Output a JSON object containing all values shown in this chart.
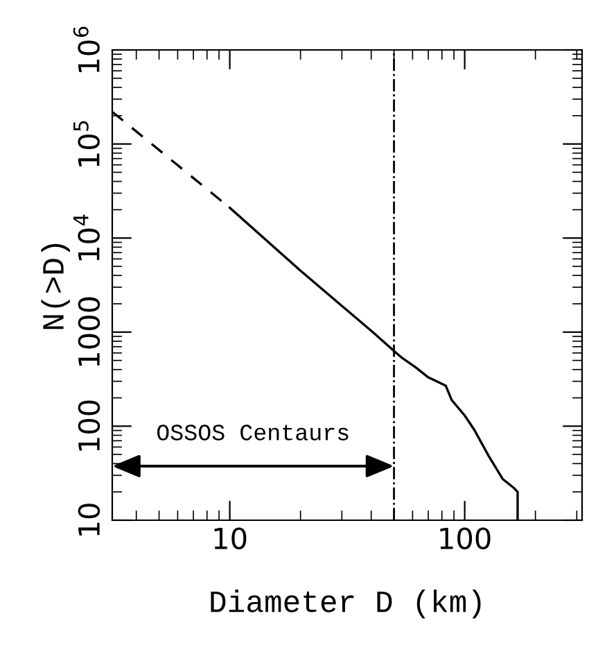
{
  "chart_data": {
    "type": "line",
    "xlabel": "Diameter D (km)",
    "ylabel": "N(>D)",
    "log": "xy",
    "xlim": [
      3.16,
      316
    ],
    "ylim": [
      10,
      1000000
    ],
    "xticks": [
      10,
      100
    ],
    "yticks": [
      10,
      100,
      1000,
      {
        "value": 10000,
        "label": "10$^{4}$"
      },
      {
        "value": 100000,
        "label": "10$^{5}$"
      },
      {
        "value": 1000000,
        "label": "10$^{6}$"
      }
    ],
    "series": [
      {
        "color": "#000000",
        "line_style": "dashed",
        "x": [
          3.16,
          10
        ],
        "values": [
          220000,
          21000
        ]
      },
      {
        "color": "#000000",
        "line_style": "solid",
        "x": [
          10,
          20,
          30,
          41,
          50,
          53.7,
          62,
          70,
          83,
          88,
          100,
          110,
          126,
          145,
          162,
          168,
          168
        ],
        "values": [
          21000,
          4500,
          1900,
          980,
          630,
          540,
          420,
          330,
          270,
          190,
          130,
          91,
          49,
          27.5,
          22,
          20,
          10
        ]
      }
    ],
    "ref_lines": [
      {
        "axis": "x",
        "value": 50,
        "color": "#000000",
        "line_style": "dashdot"
      }
    ],
    "annotations": [
      "OSSOS Centaurs"
    ],
    "grid": false,
    "legend": false
  }
}
